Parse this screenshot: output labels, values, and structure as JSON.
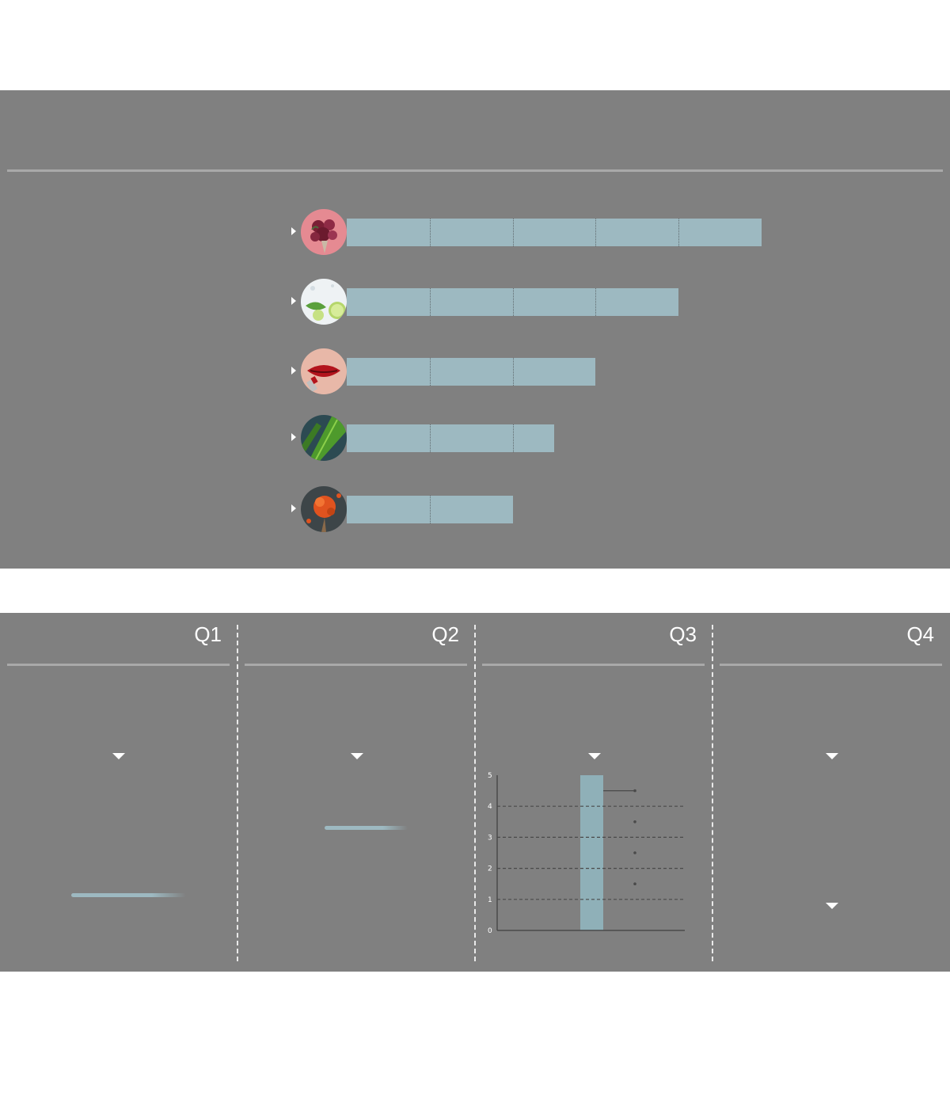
{
  "colors": {
    "panel_bg": "#808080",
    "bar": "#9db9c1",
    "rule": "#a9a9a9",
    "text": "#ffffff"
  },
  "top_chart": {
    "rows": [
      {
        "icon": "rose-bouquet-icon",
        "value": 5
      },
      {
        "icon": "lime-splash-icon",
        "value": 4
      },
      {
        "icon": "red-lips-icon",
        "value": 3
      },
      {
        "icon": "green-leaf-icon",
        "value": 2.5
      },
      {
        "icon": "spice-powder-icon",
        "value": 2
      }
    ]
  },
  "quarters": [
    {
      "label": "Q1"
    },
    {
      "label": "Q2"
    },
    {
      "label": "Q3"
    },
    {
      "label": "Q4"
    }
  ],
  "chart_data": [
    {
      "type": "bar",
      "orientation": "horizontal",
      "categories": [
        "rose-bouquet-icon",
        "lime-splash-icon",
        "red-lips-icon",
        "green-leaf-icon",
        "spice-powder-icon"
      ],
      "values": [
        5,
        4,
        3,
        2.5,
        2
      ],
      "title": "",
      "xlabel": "",
      "ylabel": "",
      "grid": false
    },
    {
      "type": "bar",
      "categories": [
        ""
      ],
      "values": [
        5
      ],
      "title": "",
      "xlabel": "",
      "ylabel": "",
      "ylim": [
        0,
        5
      ],
      "yticks": [
        "0",
        "1",
        "2",
        "3",
        "4",
        "5"
      ],
      "grid": true
    }
  ]
}
